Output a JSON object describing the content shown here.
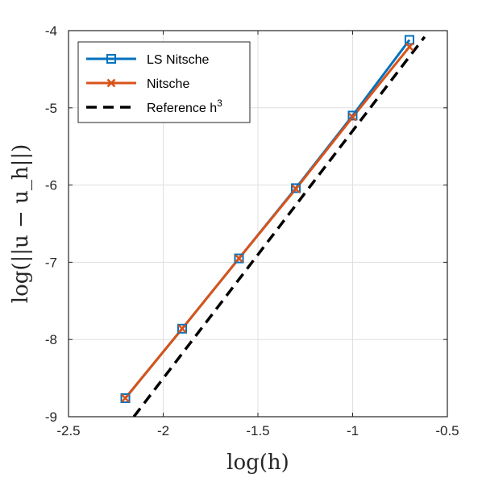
{
  "chart_data": {
    "type": "line",
    "xlabel": "log(h)",
    "ylabel": "log(||u − u_h||)",
    "xlim": [
      -2.5,
      -0.5
    ],
    "ylim": [
      -9,
      -4
    ],
    "xticks": [
      -2.5,
      -2,
      -1.5,
      -1,
      -0.5
    ],
    "yticks": [
      -9,
      -8,
      -7,
      -6,
      -5,
      -4
    ],
    "xtick_labels": [
      "-2.5",
      "-2",
      "-1.5",
      "-1",
      "-0.5"
    ],
    "ytick_labels": [
      "-9",
      "-8",
      "-7",
      "-6",
      "-5",
      "-4"
    ],
    "grid": true,
    "legend_position": "top-left",
    "series": [
      {
        "name": "LS Nitsche",
        "color": "#0072BD",
        "marker": "square",
        "x": [
          -2.2,
          -1.9,
          -1.6,
          -1.3,
          -1.0,
          -0.7
        ],
        "y": [
          -8.76,
          -7.86,
          -6.95,
          -6.04,
          -5.1,
          -4.12
        ]
      },
      {
        "name": "Nitsche",
        "color": "#D95319",
        "marker": "x",
        "x": [
          -2.2,
          -1.9,
          -1.6,
          -1.3,
          -1.0,
          -0.7
        ],
        "y": [
          -8.76,
          -7.86,
          -6.95,
          -6.05,
          -5.12,
          -4.21
        ]
      },
      {
        "name": "Reference h",
        "name_superscript": "3",
        "color": "#000000",
        "dashed": true,
        "x": [
          -2.155,
          -0.62
        ],
        "y": [
          -9.0,
          -4.08
        ]
      }
    ]
  }
}
